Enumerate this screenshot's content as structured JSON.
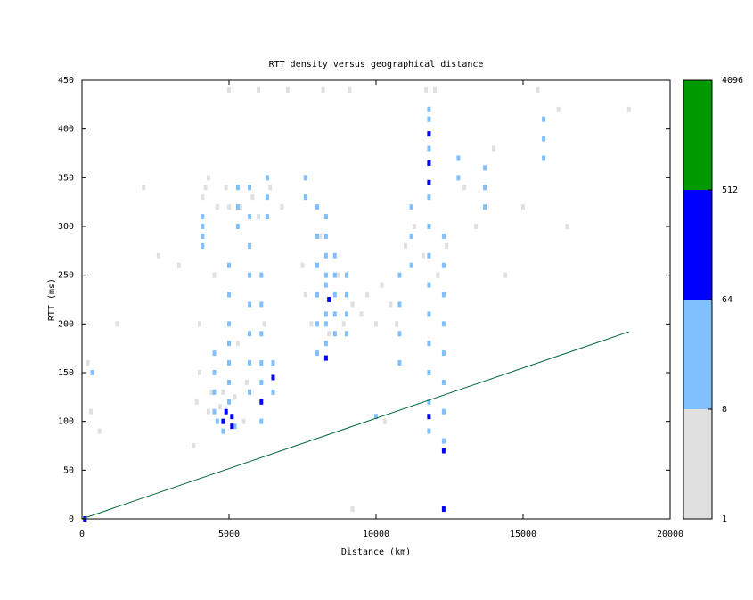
{
  "chart_data": {
    "type": "heatmap",
    "title": "RTT density versus geographical distance",
    "xlabel": "Distance (km)",
    "ylabel": "RTT (ms)",
    "xlim": [
      0,
      20000
    ],
    "ylim": [
      0,
      450
    ],
    "xticks": [
      0,
      5000,
      10000,
      15000,
      20000
    ],
    "yticks": [
      0,
      50,
      100,
      150,
      200,
      250,
      300,
      350,
      400,
      450
    ],
    "colorbar": {
      "lim": [
        1,
        4096
      ],
      "log": true,
      "ticks": [
        1,
        8,
        64,
        512,
        4096
      ],
      "colors": [
        "#e0e0e0",
        "#80c0ff",
        "#0000ff",
        "#009900"
      ]
    },
    "cells": [
      {
        "x": 3800,
        "y": 75,
        "count": 2
      },
      {
        "x": 3900,
        "y": 120,
        "count": 2
      },
      {
        "x": 4000,
        "y": 150,
        "count": 2
      },
      {
        "x": 4000,
        "y": 200,
        "count": 2
      },
      {
        "x": 4100,
        "y": 330,
        "count": 2
      },
      {
        "x": 4200,
        "y": 340,
        "count": 2
      },
      {
        "x": 4300,
        "y": 350,
        "count": 2
      },
      {
        "x": 4300,
        "y": 110,
        "count": 2
      },
      {
        "x": 4400,
        "y": 130,
        "count": 2
      },
      {
        "x": 4500,
        "y": 250,
        "count": 2
      },
      {
        "x": 4600,
        "y": 320,
        "count": 2
      },
      {
        "x": 4700,
        "y": 115,
        "count": 2
      },
      {
        "x": 4800,
        "y": 130,
        "count": 2
      },
      {
        "x": 4900,
        "y": 340,
        "count": 2
      },
      {
        "x": 5000,
        "y": 320,
        "count": 2
      },
      {
        "x": 5200,
        "y": 125,
        "count": 2
      },
      {
        "x": 5300,
        "y": 180,
        "count": 2
      },
      {
        "x": 5400,
        "y": 320,
        "count": 2
      },
      {
        "x": 5500,
        "y": 100,
        "count": 2
      },
      {
        "x": 5600,
        "y": 140,
        "count": 2
      },
      {
        "x": 5800,
        "y": 330,
        "count": 2
      },
      {
        "x": 6000,
        "y": 310,
        "count": 2
      },
      {
        "x": 6200,
        "y": 200,
        "count": 2
      },
      {
        "x": 6400,
        "y": 340,
        "count": 2
      },
      {
        "x": 6800,
        "y": 320,
        "count": 2
      },
      {
        "x": 7500,
        "y": 260,
        "count": 2
      },
      {
        "x": 7600,
        "y": 230,
        "count": 2
      },
      {
        "x": 7800,
        "y": 200,
        "count": 2
      },
      {
        "x": 8100,
        "y": 290,
        "count": 2
      },
      {
        "x": 8400,
        "y": 190,
        "count": 2
      },
      {
        "x": 8700,
        "y": 250,
        "count": 2
      },
      {
        "x": 8900,
        "y": 200,
        "count": 2
      },
      {
        "x": 9200,
        "y": 220,
        "count": 2
      },
      {
        "x": 9500,
        "y": 210,
        "count": 2
      },
      {
        "x": 9700,
        "y": 230,
        "count": 2
      },
      {
        "x": 10000,
        "y": 200,
        "count": 2
      },
      {
        "x": 10200,
        "y": 240,
        "count": 2
      },
      {
        "x": 10500,
        "y": 220,
        "count": 2
      },
      {
        "x": 10700,
        "y": 200,
        "count": 2
      },
      {
        "x": 11000,
        "y": 280,
        "count": 2
      },
      {
        "x": 11300,
        "y": 300,
        "count": 2
      },
      {
        "x": 11600,
        "y": 270,
        "count": 2
      },
      {
        "x": 12100,
        "y": 250,
        "count": 2
      },
      {
        "x": 12400,
        "y": 280,
        "count": 2
      },
      {
        "x": 13000,
        "y": 340,
        "count": 2
      },
      {
        "x": 14000,
        "y": 380,
        "count": 2
      },
      {
        "x": 14400,
        "y": 250,
        "count": 2
      },
      {
        "x": 15000,
        "y": 320,
        "count": 2
      },
      {
        "x": 15500,
        "y": 440,
        "count": 2
      },
      {
        "x": 16200,
        "y": 420,
        "count": 2
      },
      {
        "x": 16500,
        "y": 300,
        "count": 2
      },
      {
        "x": 18600,
        "y": 420,
        "count": 2
      },
      {
        "x": 300,
        "y": 110,
        "count": 2
      },
      {
        "x": 600,
        "y": 90,
        "count": 2
      },
      {
        "x": 200,
        "y": 160,
        "count": 2
      },
      {
        "x": 1200,
        "y": 200,
        "count": 2
      },
      {
        "x": 2100,
        "y": 340,
        "count": 2
      },
      {
        "x": 2600,
        "y": 270,
        "count": 2
      },
      {
        "x": 3300,
        "y": 260,
        "count": 2
      },
      {
        "x": 7000,
        "y": 440,
        "count": 2
      },
      {
        "x": 8200,
        "y": 440,
        "count": 2
      },
      {
        "x": 9100,
        "y": 440,
        "count": 2
      },
      {
        "x": 11700,
        "y": 440,
        "count": 2
      },
      {
        "x": 12000,
        "y": 440,
        "count": 2
      },
      {
        "x": 9200,
        "y": 10,
        "count": 2
      },
      {
        "x": 10300,
        "y": 100,
        "count": 2
      },
      {
        "x": 13400,
        "y": 300,
        "count": 2
      },
      {
        "x": 5000,
        "y": 440,
        "count": 2
      },
      {
        "x": 6000,
        "y": 440,
        "count": 2
      },
      {
        "x": 4100,
        "y": 280,
        "count": 20
      },
      {
        "x": 4100,
        "y": 290,
        "count": 20
      },
      {
        "x": 4100,
        "y": 300,
        "count": 20
      },
      {
        "x": 4100,
        "y": 310,
        "count": 20
      },
      {
        "x": 4500,
        "y": 110,
        "count": 20
      },
      {
        "x": 4500,
        "y": 130,
        "count": 20
      },
      {
        "x": 4500,
        "y": 150,
        "count": 20
      },
      {
        "x": 4500,
        "y": 170,
        "count": 20
      },
      {
        "x": 5000,
        "y": 120,
        "count": 20
      },
      {
        "x": 5000,
        "y": 140,
        "count": 20
      },
      {
        "x": 5000,
        "y": 160,
        "count": 20
      },
      {
        "x": 5000,
        "y": 180,
        "count": 20
      },
      {
        "x": 5000,
        "y": 200,
        "count": 20
      },
      {
        "x": 5000,
        "y": 230,
        "count": 20
      },
      {
        "x": 5000,
        "y": 260,
        "count": 20
      },
      {
        "x": 5300,
        "y": 300,
        "count": 20
      },
      {
        "x": 5300,
        "y": 320,
        "count": 20
      },
      {
        "x": 5300,
        "y": 340,
        "count": 20
      },
      {
        "x": 5700,
        "y": 130,
        "count": 20
      },
      {
        "x": 5700,
        "y": 160,
        "count": 20
      },
      {
        "x": 5700,
        "y": 190,
        "count": 20
      },
      {
        "x": 5700,
        "y": 220,
        "count": 20
      },
      {
        "x": 5700,
        "y": 250,
        "count": 20
      },
      {
        "x": 5700,
        "y": 280,
        "count": 20
      },
      {
        "x": 5700,
        "y": 310,
        "count": 20
      },
      {
        "x": 5700,
        "y": 340,
        "count": 20
      },
      {
        "x": 6100,
        "y": 100,
        "count": 20
      },
      {
        "x": 6100,
        "y": 140,
        "count": 20
      },
      {
        "x": 6100,
        "y": 160,
        "count": 20
      },
      {
        "x": 6100,
        "y": 190,
        "count": 20
      },
      {
        "x": 6100,
        "y": 220,
        "count": 20
      },
      {
        "x": 6100,
        "y": 250,
        "count": 20
      },
      {
        "x": 6300,
        "y": 310,
        "count": 20
      },
      {
        "x": 6300,
        "y": 330,
        "count": 20
      },
      {
        "x": 6300,
        "y": 350,
        "count": 20
      },
      {
        "x": 6500,
        "y": 130,
        "count": 20
      },
      {
        "x": 6500,
        "y": 160,
        "count": 20
      },
      {
        "x": 7600,
        "y": 330,
        "count": 20
      },
      {
        "x": 7600,
        "y": 350,
        "count": 20
      },
      {
        "x": 8000,
        "y": 170,
        "count": 20
      },
      {
        "x": 8000,
        "y": 200,
        "count": 20
      },
      {
        "x": 8000,
        "y": 230,
        "count": 20
      },
      {
        "x": 8000,
        "y": 260,
        "count": 20
      },
      {
        "x": 8000,
        "y": 290,
        "count": 20
      },
      {
        "x": 8000,
        "y": 320,
        "count": 20
      },
      {
        "x": 8300,
        "y": 180,
        "count": 20
      },
      {
        "x": 8300,
        "y": 200,
        "count": 20
      },
      {
        "x": 8300,
        "y": 210,
        "count": 20
      },
      {
        "x": 8300,
        "y": 240,
        "count": 20
      },
      {
        "x": 8300,
        "y": 250,
        "count": 20
      },
      {
        "x": 8300,
        "y": 270,
        "count": 20
      },
      {
        "x": 8300,
        "y": 290,
        "count": 20
      },
      {
        "x": 8300,
        "y": 310,
        "count": 20
      },
      {
        "x": 8600,
        "y": 190,
        "count": 20
      },
      {
        "x": 8600,
        "y": 210,
        "count": 20
      },
      {
        "x": 8600,
        "y": 230,
        "count": 20
      },
      {
        "x": 8600,
        "y": 250,
        "count": 20
      },
      {
        "x": 8600,
        "y": 270,
        "count": 20
      },
      {
        "x": 9000,
        "y": 190,
        "count": 20
      },
      {
        "x": 9000,
        "y": 210,
        "count": 20
      },
      {
        "x": 9000,
        "y": 230,
        "count": 20
      },
      {
        "x": 9000,
        "y": 250,
        "count": 20
      },
      {
        "x": 10800,
        "y": 160,
        "count": 20
      },
      {
        "x": 10800,
        "y": 190,
        "count": 20
      },
      {
        "x": 10800,
        "y": 220,
        "count": 20
      },
      {
        "x": 10800,
        "y": 250,
        "count": 20
      },
      {
        "x": 11200,
        "y": 260,
        "count": 20
      },
      {
        "x": 11200,
        "y": 290,
        "count": 20
      },
      {
        "x": 11200,
        "y": 320,
        "count": 20
      },
      {
        "x": 11800,
        "y": 90,
        "count": 20
      },
      {
        "x": 11800,
        "y": 120,
        "count": 20
      },
      {
        "x": 11800,
        "y": 150,
        "count": 20
      },
      {
        "x": 11800,
        "y": 180,
        "count": 20
      },
      {
        "x": 11800,
        "y": 210,
        "count": 20
      },
      {
        "x": 11800,
        "y": 240,
        "count": 20
      },
      {
        "x": 11800,
        "y": 270,
        "count": 20
      },
      {
        "x": 11800,
        "y": 300,
        "count": 20
      },
      {
        "x": 11800,
        "y": 330,
        "count": 20
      },
      {
        "x": 11800,
        "y": 380,
        "count": 20
      },
      {
        "x": 11800,
        "y": 410,
        "count": 20
      },
      {
        "x": 11800,
        "y": 420,
        "count": 20
      },
      {
        "x": 12300,
        "y": 80,
        "count": 20
      },
      {
        "x": 12300,
        "y": 110,
        "count": 20
      },
      {
        "x": 12300,
        "y": 140,
        "count": 20
      },
      {
        "x": 12300,
        "y": 170,
        "count": 20
      },
      {
        "x": 12300,
        "y": 200,
        "count": 20
      },
      {
        "x": 12300,
        "y": 230,
        "count": 20
      },
      {
        "x": 12300,
        "y": 260,
        "count": 20
      },
      {
        "x": 12300,
        "y": 290,
        "count": 20
      },
      {
        "x": 12800,
        "y": 350,
        "count": 20
      },
      {
        "x": 12800,
        "y": 370,
        "count": 20
      },
      {
        "x": 13700,
        "y": 320,
        "count": 20
      },
      {
        "x": 13700,
        "y": 340,
        "count": 20
      },
      {
        "x": 13700,
        "y": 360,
        "count": 20
      },
      {
        "x": 15700,
        "y": 370,
        "count": 20
      },
      {
        "x": 15700,
        "y": 390,
        "count": 20
      },
      {
        "x": 15700,
        "y": 410,
        "count": 20
      },
      {
        "x": 10000,
        "y": 105,
        "count": 20
      },
      {
        "x": 350,
        "y": 150,
        "count": 20
      },
      {
        "x": 4600,
        "y": 100,
        "count": 20
      },
      {
        "x": 4800,
        "y": 90,
        "count": 20
      },
      {
        "x": 5200,
        "y": 95,
        "count": 20
      },
      {
        "x": 5100,
        "y": 95,
        "count": 100
      },
      {
        "x": 5100,
        "y": 105,
        "count": 100
      },
      {
        "x": 4900,
        "y": 110,
        "count": 100
      },
      {
        "x": 4800,
        "y": 100,
        "count": 100
      },
      {
        "x": 6100,
        "y": 120,
        "count": 100
      },
      {
        "x": 6500,
        "y": 145,
        "count": 100
      },
      {
        "x": 8400,
        "y": 225,
        "count": 100
      },
      {
        "x": 8300,
        "y": 165,
        "count": 100
      },
      {
        "x": 11800,
        "y": 345,
        "count": 100
      },
      {
        "x": 11800,
        "y": 365,
        "count": 100
      },
      {
        "x": 11800,
        "y": 395,
        "count": 100
      },
      {
        "x": 11800,
        "y": 105,
        "count": 100
      },
      {
        "x": 12300,
        "y": 10,
        "count": 100
      },
      {
        "x": 12300,
        "y": 70,
        "count": 100
      },
      {
        "x": 100,
        "y": 0,
        "count": 100
      }
    ],
    "series": [
      {
        "x": [
          0,
          18600
        ],
        "values": [
          0,
          192
        ],
        "color": "#006633"
      }
    ]
  }
}
